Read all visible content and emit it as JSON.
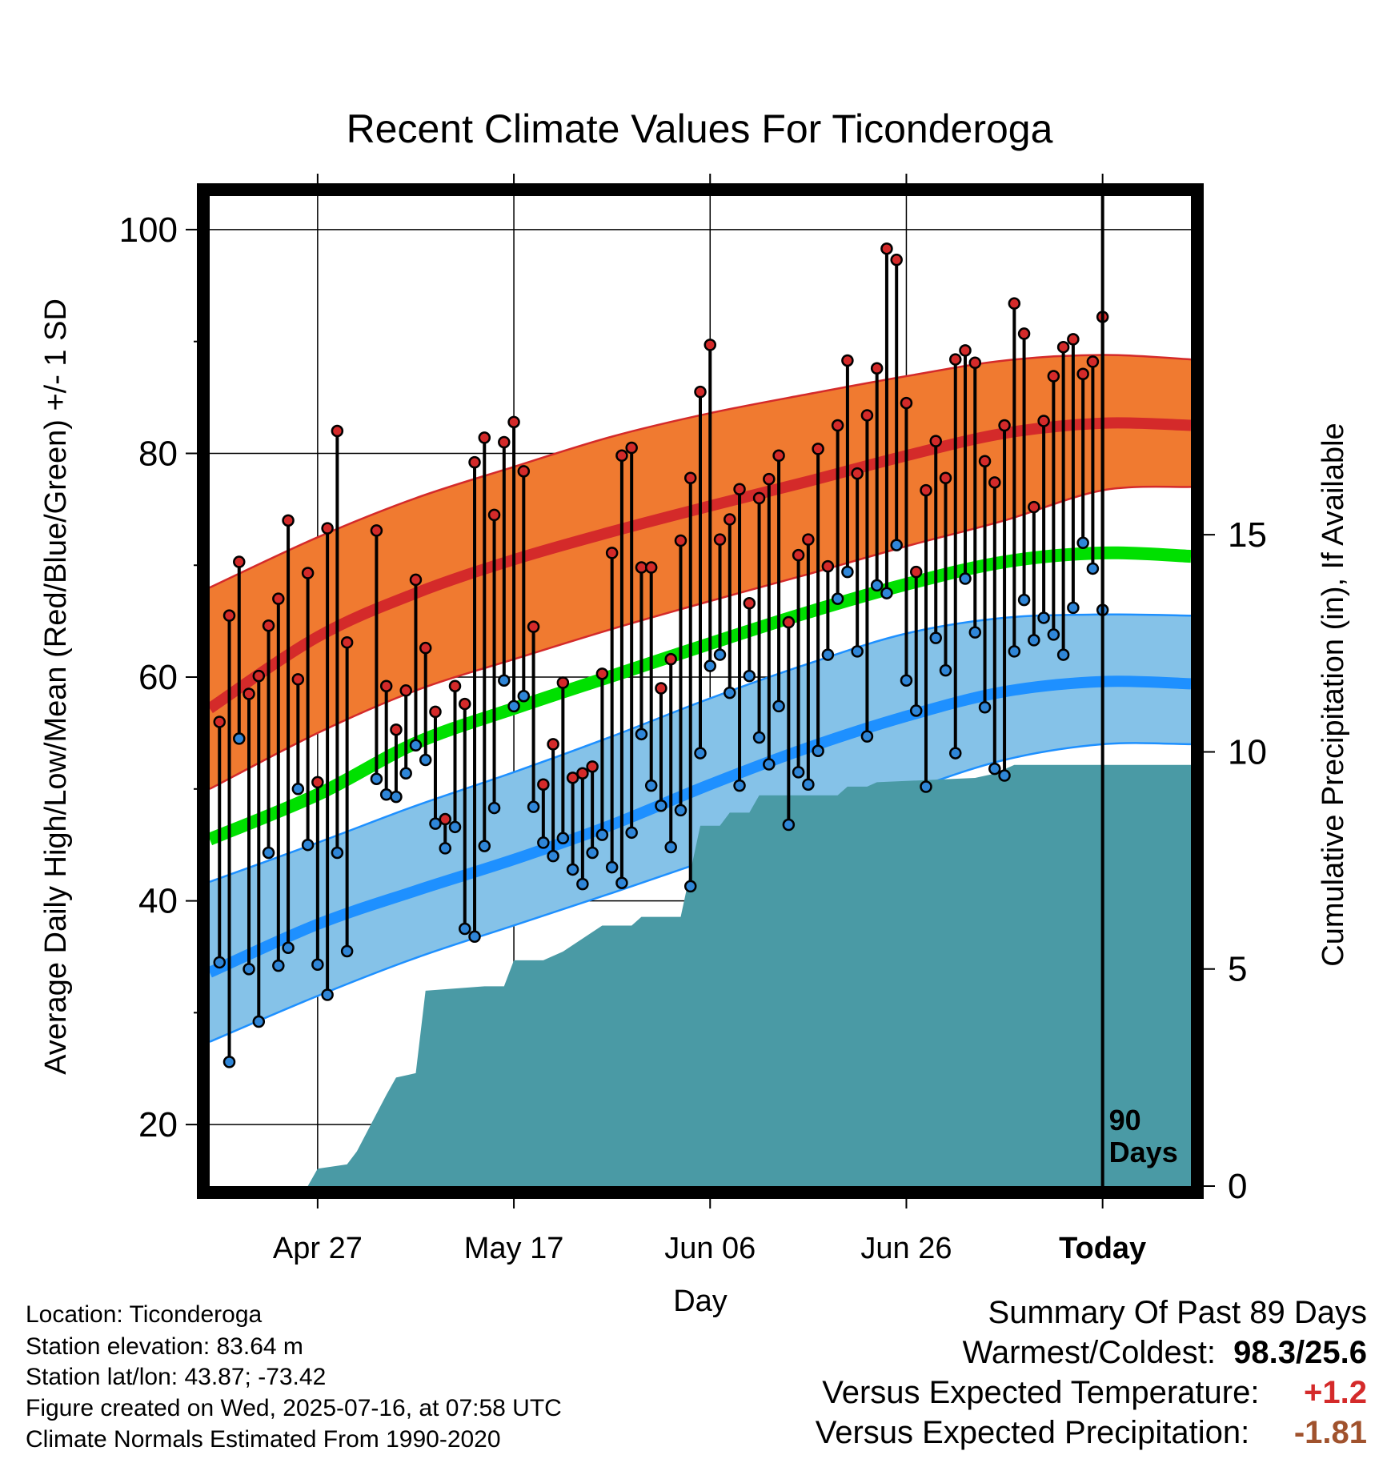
{
  "chart_data": {
    "type": "line",
    "title": "Recent Climate Values For Ticonderoga",
    "xlabel": "Day",
    "ylabel": "Average Daily High/Low/Mean (Red/Blue/Green) +/- 1 SD",
    "y2label": "Cumulative Precipitation (in), If Available",
    "ylim": [
      14.5,
      103
    ],
    "y2lim": [
      0,
      22.8
    ],
    "xlim": [
      "2025-04-16",
      "2025-07-25"
    ],
    "x_tick_labels": [
      "Apr 27",
      "May 17",
      "Jun 06",
      "Jun 26",
      "Today"
    ],
    "x_tick_dates": [
      "2025-04-27",
      "2025-05-17",
      "2025-06-06",
      "2025-06-26",
      "2025-07-16"
    ],
    "y_ticks": [
      20,
      40,
      60,
      80,
      100
    ],
    "y2_ticks": [
      0,
      5,
      10,
      15
    ],
    "grid": true,
    "today_marker": {
      "date": "2025-07-16",
      "label_line1": "90",
      "label_line2": "Days"
    },
    "colors": {
      "high_band": "#f07a30",
      "high_mean": "#d42a2a",
      "low_band": "#85c2e8",
      "low_mean": "#1e90ff",
      "mean": "#00e000",
      "precip": "#4a9aa5",
      "high_point": "#d42a2a",
      "low_point": "#2f86d8"
    },
    "daily": {
      "start_date": "2025-04-17",
      "high": [
        56,
        65.5,
        70.3,
        58.5,
        60.1,
        64.6,
        67,
        74,
        59.8,
        69.3,
        50.6,
        73.3,
        82,
        63.1,
        null,
        null,
        73.1,
        59.2,
        55.3,
        58.8,
        68.7,
        62.6,
        56.9,
        47.3,
        59.2,
        57.6,
        79.2,
        81.4,
        74.5,
        81,
        82.8,
        78.4,
        64.5,
        50.4,
        54,
        59.5,
        51,
        51.4,
        52,
        60.3,
        71.1,
        79.8,
        80.5,
        69.8,
        69.8,
        59,
        61.6,
        72.2,
        77.8,
        85.5,
        89.7,
        72.3,
        74.1,
        76.8,
        66.6,
        76,
        77.7,
        79.8,
        64.9,
        70.9,
        72.3,
        80.4,
        69.9,
        82.5,
        88.3,
        78.2,
        83.4,
        87.6,
        98.3,
        97.3,
        84.5,
        69.4,
        76.7,
        81.1,
        77.8,
        88.4,
        89.2,
        88.1,
        79.3,
        77.4,
        82.5,
        93.4,
        90.7,
        75.2,
        82.9,
        86.9,
        89.5,
        90.2,
        87.1,
        88.2,
        92.2
      ],
      "low": [
        34.5,
        25.6,
        54.5,
        33.9,
        29.2,
        44.3,
        34.2,
        35.8,
        50,
        45,
        34.3,
        31.6,
        44.3,
        35.5,
        null,
        null,
        50.9,
        49.5,
        49.3,
        51.4,
        53.9,
        52.6,
        46.9,
        44.7,
        46.6,
        37.5,
        36.8,
        44.9,
        48.3,
        59.7,
        57.4,
        58.3,
        48.4,
        45.2,
        44,
        45.6,
        42.8,
        41.5,
        44.3,
        45.9,
        43,
        41.6,
        46.1,
        54.9,
        50.3,
        48.5,
        44.8,
        48.1,
        41.3,
        53.2,
        61,
        62,
        58.6,
        50.3,
        60.1,
        54.6,
        52.2,
        57.4,
        46.8,
        51.5,
        50.4,
        53.4,
        62,
        67,
        69.4,
        62.3,
        54.7,
        68.2,
        67.5,
        71.8,
        59.7,
        57,
        50.2,
        63.5,
        60.6,
        53.2,
        68.8,
        64,
        57.3,
        51.8,
        51.2,
        62.3,
        66.9,
        63.3,
        65.3,
        63.8,
        62,
        66.2,
        72,
        69.7,
        66
      ]
    },
    "normals": {
      "dates": [
        "2025-04-16",
        "2025-04-27",
        "2025-05-07",
        "2025-05-17",
        "2025-05-27",
        "2025-06-06",
        "2025-06-16",
        "2025-06-26",
        "2025-07-06",
        "2025-07-16",
        "2025-07-25"
      ],
      "high_mean": [
        57.2,
        63.6,
        67.5,
        70.5,
        73,
        75.3,
        77.5,
        79.8,
        81.8,
        82.7,
        82.5
      ],
      "high_sd_upper": [
        68,
        72.5,
        76,
        78.8,
        81.5,
        83.6,
        85.3,
        86.9,
        88.3,
        88.8,
        88.4
      ],
      "high_sd_lower": [
        50,
        55,
        58.8,
        61.6,
        64.3,
        66.8,
        69.2,
        71.7,
        74,
        76.7,
        77
      ],
      "mean": [
        45.5,
        49.5,
        54.1,
        57.2,
        60.1,
        63,
        65.8,
        68.3,
        70.3,
        71.1,
        70.8
      ],
      "low_mean": [
        33.6,
        37.9,
        40.9,
        43.7,
        46.8,
        50.4,
        53.7,
        56.5,
        58.7,
        59.6,
        59.4
      ],
      "low_sd_upper": [
        41.7,
        45.2,
        48.5,
        51.5,
        54.7,
        58.1,
        61.2,
        63.9,
        65.3,
        65.6,
        65.5
      ],
      "low_sd_lower": [
        27.4,
        31.5,
        34.9,
        37.8,
        40.7,
        43.7,
        46.7,
        49.8,
        52.6,
        54,
        54
      ]
    },
    "precipitation": {
      "dates": [
        "2025-04-26",
        "2025-04-27",
        "2025-04-30",
        "2025-05-01",
        "2025-05-04",
        "2025-05-05",
        "2025-05-07",
        "2025-05-08",
        "2025-05-14",
        "2025-05-16",
        "2025-05-17",
        "2025-05-20",
        "2025-05-22",
        "2025-05-26",
        "2025-05-29",
        "2025-05-30",
        "2025-06-03",
        "2025-06-05",
        "2025-06-07",
        "2025-06-08",
        "2025-06-10",
        "2025-06-11",
        "2025-06-19",
        "2025-06-20",
        "2025-06-22",
        "2025-06-23",
        "2025-07-03",
        "2025-07-05",
        "2025-07-07",
        "2025-07-25"
      ],
      "values": [
        0,
        0.4,
        0.5,
        0.8,
        2.1,
        2.5,
        2.6,
        4.5,
        4.6,
        4.6,
        5.2,
        5.2,
        5.4,
        6,
        6,
        6.2,
        6.2,
        8.3,
        8.3,
        8.6,
        8.6,
        9,
        9,
        9.2,
        9.2,
        9.3,
        9.4,
        9.5,
        9.7,
        9.7
      ]
    }
  },
  "info": {
    "location": "Location: Ticonderoga",
    "elevation": "Station elevation: 83.64 m",
    "latlon": "Station lat/lon: 43.87; -73.42",
    "created": "Figure created on Wed, 2025-07-16, at 07:58 UTC",
    "normals_period": "Climate Normals Estimated From 1990-2020"
  },
  "summary": {
    "heading": "Summary Of Past 89 Days",
    "warmest_coldest_label": "Warmest/Coldest:",
    "warmest_coldest_value": "98.3/25.6",
    "temp_label": "Versus Expected Temperature:",
    "temp_value": "+1.2",
    "temp_color": "#d42a2a",
    "precip_label": "Versus Expected Precipitation:",
    "precip_value": "-1.81",
    "precip_color": "#a0522d"
  }
}
